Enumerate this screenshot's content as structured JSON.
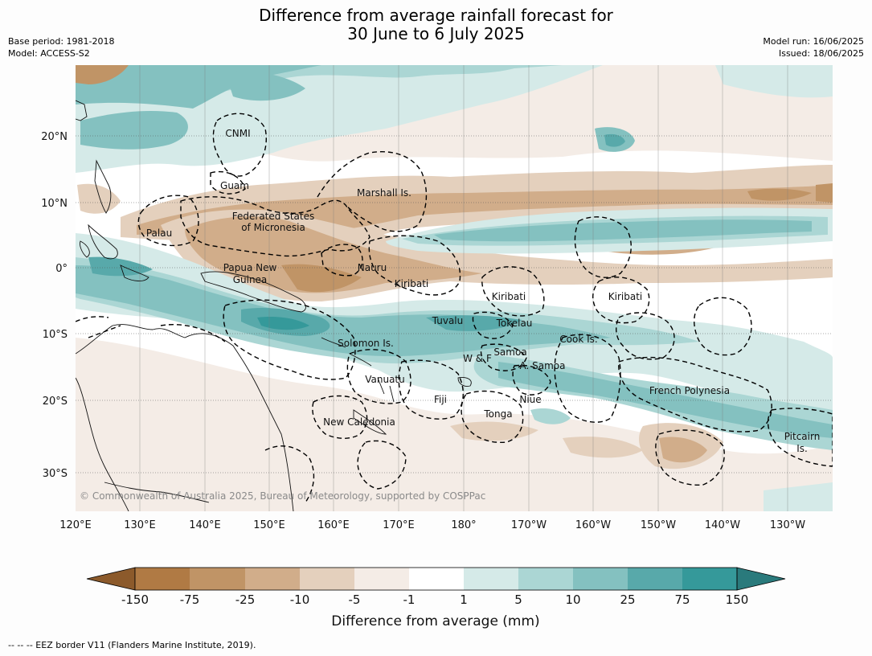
{
  "header": {
    "title_line1": "Difference from average rainfall forecast for",
    "title_line2": "30 June to 6 July 2025",
    "base_period": "Base period: 1981-2018",
    "model": "Model: ACCESS-S2",
    "model_run": "Model run: 16/06/2025",
    "issued": "Issued: 18/06/2025"
  },
  "map": {
    "lat_labels": [
      "20°N",
      "10°N",
      "0°",
      "10°S",
      "20°S",
      "30°S"
    ],
    "lon_labels": [
      "120°E",
      "130°E",
      "140°E",
      "150°E",
      "160°E",
      "170°E",
      "180°",
      "170°W",
      "160°W",
      "150°W",
      "140°W",
      "130°W"
    ],
    "regions": {
      "cnmi": "CNMI",
      "guam": "Guam",
      "marshall": "Marshall Is.",
      "fsm_1": "Federated States",
      "fsm_2": "of Micronesia",
      "palau": "Palau",
      "png_1": "Papua New",
      "png_2": "Guinea",
      "nauru": "Nauru",
      "kiribati_w": "Kiribati",
      "kiribati_c": "Kiribati",
      "kiribati_e": "Kiribati",
      "tuvalu": "Tuvalu",
      "tokelau": "Tokelau",
      "solomon": "Solomon Is.",
      "samoa": "Samoa",
      "wf": "W & F",
      "asamoa": "A. Samoa",
      "cook": "Cook Is.",
      "vanuatu": "Vanuatu",
      "fiji": "Fiji",
      "niue": "Niue",
      "tonga": "Tonga",
      "french_poly": "French Polynesia",
      "new_caledonia": "New Caledonia",
      "pitcairn_1": "Pitcairn",
      "pitcairn_2": "Is."
    },
    "credit": "© Commonwealth of Australia 2025, Bureau of Meteorology, supported by COSPPac"
  },
  "colorbar": {
    "ticks": [
      "-150",
      "-75",
      "-25",
      "-10",
      "-5",
      "-1",
      "1",
      "5",
      "10",
      "25",
      "75",
      "150"
    ],
    "colors": [
      "#8c5a2b",
      "#b07a44",
      "#c09466",
      "#d1ad8a",
      "#e4d0bd",
      "#f4ece6",
      "#ffffff",
      "#d5eae8",
      "#abd6d4",
      "#84c1c0",
      "#58a9aa",
      "#35999a",
      "#2a7a7c"
    ],
    "label": "Difference from average (mm)"
  },
  "footer": {
    "legend": "--  --  -- EEZ border V11 (Flanders Marine Institute, 2019)."
  }
}
